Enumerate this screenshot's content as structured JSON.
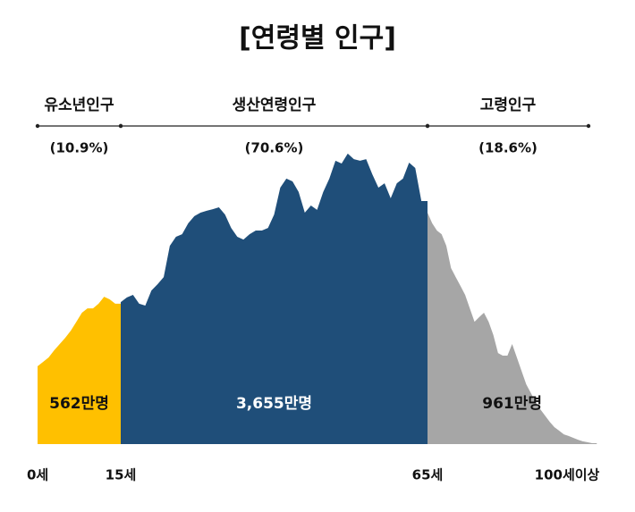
{
  "chart_data": {
    "type": "area",
    "title": "[연령별 인구]",
    "series": [
      {
        "name": "유소년인구",
        "color": "#ffc000",
        "text_color": "#111111",
        "share": {
          "value": 10.9,
          "label": "(10.9%)"
        },
        "total": {
          "value": 562,
          "label": "562만명"
        },
        "x": [
          0,
          1,
          2,
          3,
          4,
          5,
          6,
          7,
          8,
          9,
          10,
          11,
          12,
          13,
          14
        ],
        "values": [
          249,
          263,
          277,
          300,
          320,
          340,
          363,
          391,
          420,
          434,
          434,
          449,
          471,
          463,
          449
        ]
      },
      {
        "name": "생산연령인구",
        "color": "#1f4e79",
        "text_color": "#ffffff",
        "share": {
          "value": 70.6,
          "label": "(70.6%)"
        },
        "total": {
          "value": 3655,
          "label": "3,655만명"
        },
        "x": [
          15,
          16,
          17,
          18,
          19,
          20,
          21,
          22,
          23,
          24,
          25,
          26,
          27,
          28,
          29,
          30,
          31,
          32,
          33,
          34,
          35,
          36,
          37,
          38,
          39,
          40,
          41,
          42,
          43,
          44,
          45,
          46,
          47,
          48,
          49,
          50,
          51,
          52,
          53,
          54,
          55,
          56,
          57,
          58,
          59,
          60,
          61,
          62,
          63,
          64
        ],
        "values": [
          454,
          469,
          477,
          449,
          443,
          491,
          511,
          534,
          634,
          663,
          671,
          706,
          729,
          740,
          746,
          751,
          757,
          734,
          691,
          663,
          654,
          671,
          683,
          683,
          691,
          734,
          820,
          849,
          840,
          806,
          740,
          763,
          749,
          806,
          849,
          906,
          897,
          929,
          911,
          906,
          911,
          863,
          820,
          834,
          786,
          834,
          849,
          900,
          883,
          777
        ]
      },
      {
        "name": "고령인구",
        "color": "#a6a6a6",
        "text_color": "#111111",
        "share": {
          "value": 18.6,
          "label": "(18.6%)"
        },
        "total": {
          "value": 961,
          "label": "961만명"
        },
        "x": [
          65,
          66,
          67,
          68,
          69,
          70,
          71,
          72,
          73,
          74,
          75,
          76,
          77,
          78,
          79,
          80,
          81,
          82,
          83,
          84,
          85,
          86,
          87,
          88,
          89,
          90,
          91,
          92,
          93,
          94,
          95,
          96,
          97,
          98,
          99,
          100
        ],
        "values": [
          740,
          706,
          683,
          671,
          634,
          563,
          534,
          506,
          477,
          434,
          391,
          406,
          420,
          391,
          349,
          291,
          283,
          283,
          320,
          277,
          234,
          191,
          163,
          134,
          111,
          91,
          71,
          54,
          43,
          31,
          26,
          20,
          14,
          9,
          6,
          3
        ]
      }
    ],
    "xlim": [
      0,
      100
    ],
    "xticks": [
      {
        "value": 0,
        "label": "0세"
      },
      {
        "value": 15,
        "label": "15세"
      },
      {
        "value": 65,
        "label": "65세"
      },
      {
        "value": 100,
        "label": "100세이상"
      }
    ],
    "ylim": [
      0,
      1000
    ]
  }
}
